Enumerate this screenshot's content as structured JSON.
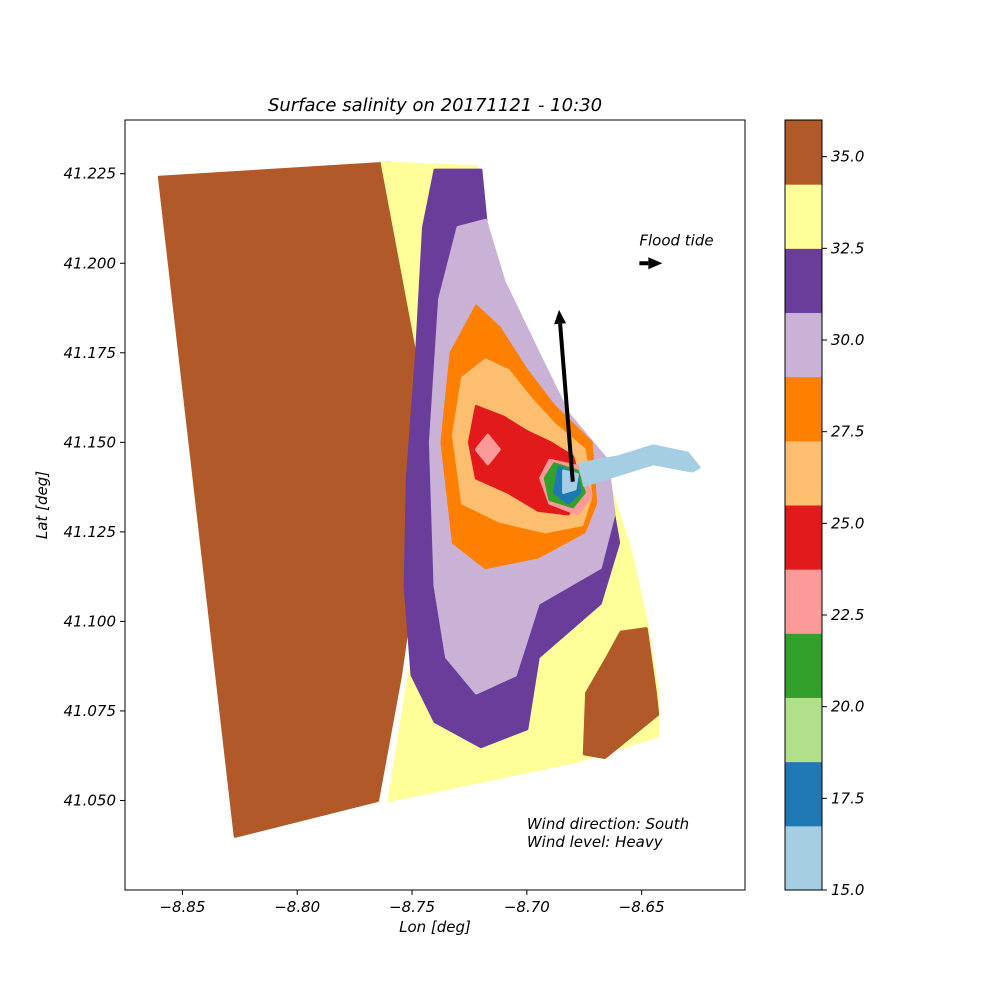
{
  "chart_data": {
    "type": "heatmap",
    "title": "Surface salinity on 20171121 - 10:30",
    "xlabel": "Lon [deg]",
    "ylabel": "Lat [deg]",
    "xlim": [
      -8.875,
      -8.605
    ],
    "ylim": [
      41.025,
      41.24
    ],
    "xticks": [
      {
        "value": -8.85,
        "label": "−8.85"
      },
      {
        "value": -8.8,
        "label": "−8.80"
      },
      {
        "value": -8.75,
        "label": "−8.75"
      },
      {
        "value": -8.7,
        "label": "−8.70"
      },
      {
        "value": -8.65,
        "label": "−8.65"
      }
    ],
    "yticks": [
      {
        "value": 41.05,
        "label": "41.050"
      },
      {
        "value": 41.075,
        "label": "41.075"
      },
      {
        "value": 41.1,
        "label": "41.100"
      },
      {
        "value": 41.125,
        "label": "41.125"
      },
      {
        "value": 41.15,
        "label": "41.150"
      },
      {
        "value": 41.175,
        "label": "41.175"
      },
      {
        "value": 41.2,
        "label": "41.200"
      },
      {
        "value": 41.225,
        "label": "41.225"
      }
    ],
    "grid": false,
    "colorbar": {
      "range": [
        15.0,
        36.0
      ],
      "levels": [
        {
          "from": 15.0,
          "to": 16.75,
          "color": "#a6cee3"
        },
        {
          "from": 16.75,
          "to": 18.5,
          "color": "#1f78b4"
        },
        {
          "from": 18.5,
          "to": 20.25,
          "color": "#b2df8a"
        },
        {
          "from": 20.25,
          "to": 22.0,
          "color": "#33a02c"
        },
        {
          "from": 22.0,
          "to": 23.75,
          "color": "#fb9a99"
        },
        {
          "from": 23.75,
          "to": 25.5,
          "color": "#e31a1c"
        },
        {
          "from": 25.5,
          "to": 27.25,
          "color": "#fdbf6f"
        },
        {
          "from": 27.25,
          "to": 29.0,
          "color": "#ff7f00"
        },
        {
          "from": 29.0,
          "to": 30.75,
          "color": "#cab2d6"
        },
        {
          "from": 30.75,
          "to": 32.5,
          "color": "#6a3d9a"
        },
        {
          "from": 32.5,
          "to": 34.25,
          "color": "#ffff99"
        },
        {
          "from": 34.25,
          "to": 36.0,
          "color": "#b15928"
        }
      ],
      "ticks": [
        {
          "value": 15.0,
          "label": "15.0"
        },
        {
          "value": 17.5,
          "label": "17.5"
        },
        {
          "value": 20.0,
          "label": "20.0"
        },
        {
          "value": 22.5,
          "label": "22.5"
        },
        {
          "value": 25.0,
          "label": "25.0"
        },
        {
          "value": 27.5,
          "label": "27.5"
        },
        {
          "value": 30.0,
          "label": "30.0"
        },
        {
          "value": 32.5,
          "label": "32.5"
        },
        {
          "value": 35.0,
          "label": "35.0"
        }
      ]
    },
    "regions": [
      {
        "level": 12,
        "poly": [
          [
            -8.86,
            41.224
          ],
          [
            -8.76,
            41.228
          ],
          [
            -8.748,
            41.18
          ],
          [
            -8.745,
            41.13
          ],
          [
            -8.755,
            41.085
          ],
          [
            -8.765,
            41.05
          ],
          [
            -8.827,
            41.04
          ]
        ]
      },
      {
        "level": 11,
        "poly": [
          [
            -8.763,
            41.228
          ],
          [
            -8.722,
            41.227
          ],
          [
            -8.715,
            41.195
          ],
          [
            -8.7,
            41.175
          ],
          [
            -8.69,
            41.16
          ],
          [
            -8.675,
            41.15
          ],
          [
            -8.665,
            41.14
          ],
          [
            -8.655,
            41.12
          ],
          [
            -8.648,
            41.1
          ],
          [
            -8.643,
            41.08
          ],
          [
            -8.643,
            41.068
          ],
          [
            -8.678,
            41.061
          ],
          [
            -8.76,
            41.05
          ],
          [
            -8.745,
            41.11
          ],
          [
            -8.746,
            41.17
          ]
        ]
      },
      {
        "level": 10,
        "poly": [
          [
            -8.74,
            41.226
          ],
          [
            -8.72,
            41.226
          ],
          [
            -8.716,
            41.2
          ],
          [
            -8.705,
            41.18
          ],
          [
            -8.69,
            41.16
          ],
          [
            -8.68,
            41.148
          ],
          [
            -8.665,
            41.14
          ],
          [
            -8.66,
            41.122
          ],
          [
            -8.668,
            41.105
          ],
          [
            -8.695,
            41.09
          ],
          [
            -8.7,
            41.07
          ],
          [
            -8.72,
            41.065
          ],
          [
            -8.74,
            41.072
          ],
          [
            -8.75,
            41.085
          ],
          [
            -8.753,
            41.11
          ],
          [
            -8.752,
            41.14
          ],
          [
            -8.748,
            41.175
          ],
          [
            -8.745,
            41.21
          ]
        ]
      },
      {
        "level": 9,
        "poly": [
          [
            -8.73,
            41.21
          ],
          [
            -8.718,
            41.212
          ],
          [
            -8.71,
            41.195
          ],
          [
            -8.695,
            41.175
          ],
          [
            -8.682,
            41.158
          ],
          [
            -8.665,
            41.145
          ],
          [
            -8.662,
            41.13
          ],
          [
            -8.668,
            41.115
          ],
          [
            -8.695,
            41.105
          ],
          [
            -8.705,
            41.085
          ],
          [
            -8.722,
            41.08
          ],
          [
            -8.735,
            41.09
          ],
          [
            -8.74,
            41.11
          ],
          [
            -8.742,
            41.15
          ],
          [
            -8.738,
            41.19
          ]
        ]
      },
      {
        "level": 8,
        "poly": [
          [
            -8.722,
            41.188
          ],
          [
            -8.712,
            41.182
          ],
          [
            -8.7,
            41.17
          ],
          [
            -8.688,
            41.16
          ],
          [
            -8.672,
            41.15
          ],
          [
            -8.67,
            41.133
          ],
          [
            -8.675,
            41.125
          ],
          [
            -8.695,
            41.118
          ],
          [
            -8.718,
            41.115
          ],
          [
            -8.732,
            41.122
          ],
          [
            -8.737,
            41.15
          ],
          [
            -8.733,
            41.175
          ]
        ]
      },
      {
        "level": 7,
        "poly": [
          [
            -8.718,
            41.173
          ],
          [
            -8.708,
            41.17
          ],
          [
            -8.698,
            41.162
          ],
          [
            -8.688,
            41.155
          ],
          [
            -8.675,
            41.148
          ],
          [
            -8.672,
            41.135
          ],
          [
            -8.676,
            41.127
          ],
          [
            -8.692,
            41.125
          ],
          [
            -8.712,
            41.128
          ],
          [
            -8.728,
            41.133
          ],
          [
            -8.732,
            41.152
          ],
          [
            -8.728,
            41.168
          ]
        ]
      },
      {
        "level": 6,
        "poly": [
          [
            -8.722,
            41.16
          ],
          [
            -8.71,
            41.157
          ],
          [
            -8.7,
            41.153
          ],
          [
            -8.69,
            41.15
          ],
          [
            -8.68,
            41.146
          ],
          [
            -8.676,
            41.136
          ],
          [
            -8.682,
            41.13
          ],
          [
            -8.695,
            41.131
          ],
          [
            -8.708,
            41.136
          ],
          [
            -8.722,
            41.14
          ],
          [
            -8.725,
            41.15
          ]
        ]
      },
      {
        "level": 5,
        "poly": [
          [
            -8.717,
            41.152
          ],
          [
            -8.712,
            41.148
          ],
          [
            -8.717,
            41.144
          ],
          [
            -8.722,
            41.148
          ]
        ]
      },
      {
        "level": 5,
        "poly": [
          [
            -8.69,
            41.145
          ],
          [
            -8.676,
            41.143
          ],
          [
            -8.672,
            41.135
          ],
          [
            -8.678,
            41.13
          ],
          [
            -8.69,
            41.133
          ],
          [
            -8.694,
            41.14
          ]
        ]
      },
      {
        "level": 4,
        "poly": [
          [
            -8.688,
            41.144
          ],
          [
            -8.678,
            41.142
          ],
          [
            -8.675,
            41.136
          ],
          [
            -8.68,
            41.132
          ],
          [
            -8.69,
            41.134
          ],
          [
            -8.692,
            41.14
          ]
        ]
      },
      {
        "level": 2,
        "poly": [
          [
            -8.686,
            41.143
          ],
          [
            -8.678,
            41.141
          ],
          [
            -8.677,
            41.136
          ],
          [
            -8.682,
            41.133
          ],
          [
            -8.688,
            41.136
          ]
        ]
      },
      {
        "level": 1,
        "poly": [
          [
            -8.684,
            41.142
          ],
          [
            -8.678,
            41.141
          ],
          [
            -8.679,
            41.137
          ],
          [
            -8.684,
            41.136
          ]
        ]
      },
      {
        "level": 1,
        "poly": [
          [
            -8.677,
            41.144
          ],
          [
            -8.66,
            41.146
          ],
          [
            -8.645,
            41.149
          ],
          [
            -8.63,
            41.147
          ],
          [
            -8.625,
            41.143
          ],
          [
            -8.628,
            41.142
          ],
          [
            -8.645,
            41.144
          ],
          [
            -8.66,
            41.141
          ],
          [
            -8.675,
            41.138
          ]
        ]
      },
      {
        "level": 12,
        "poly": [
          [
            -8.659,
            41.097
          ],
          [
            -8.648,
            41.098
          ],
          [
            -8.644,
            41.08
          ],
          [
            -8.643,
            41.074
          ],
          [
            -8.666,
            41.062
          ],
          [
            -8.675,
            41.063
          ],
          [
            -8.674,
            41.08
          ],
          [
            -8.665,
            41.09
          ]
        ]
      }
    ],
    "annotations": [
      {
        "text": "Flood tide",
        "x": -8.651,
        "y": 41.205
      },
      {
        "text": "Wind direction: South",
        "x": -8.7,
        "y": 41.042
      },
      {
        "text": "Wind level: Heavy",
        "x": -8.7,
        "y": 41.037
      }
    ],
    "arrows": [
      {
        "name": "wind-arrow",
        "from": [
          -8.68,
          41.139
        ],
        "to": [
          -8.686,
          41.187
        ]
      },
      {
        "name": "flood-tide-arrow",
        "from": [
          -8.651,
          41.2
        ],
        "to": [
          -8.641,
          41.2
        ]
      }
    ]
  }
}
